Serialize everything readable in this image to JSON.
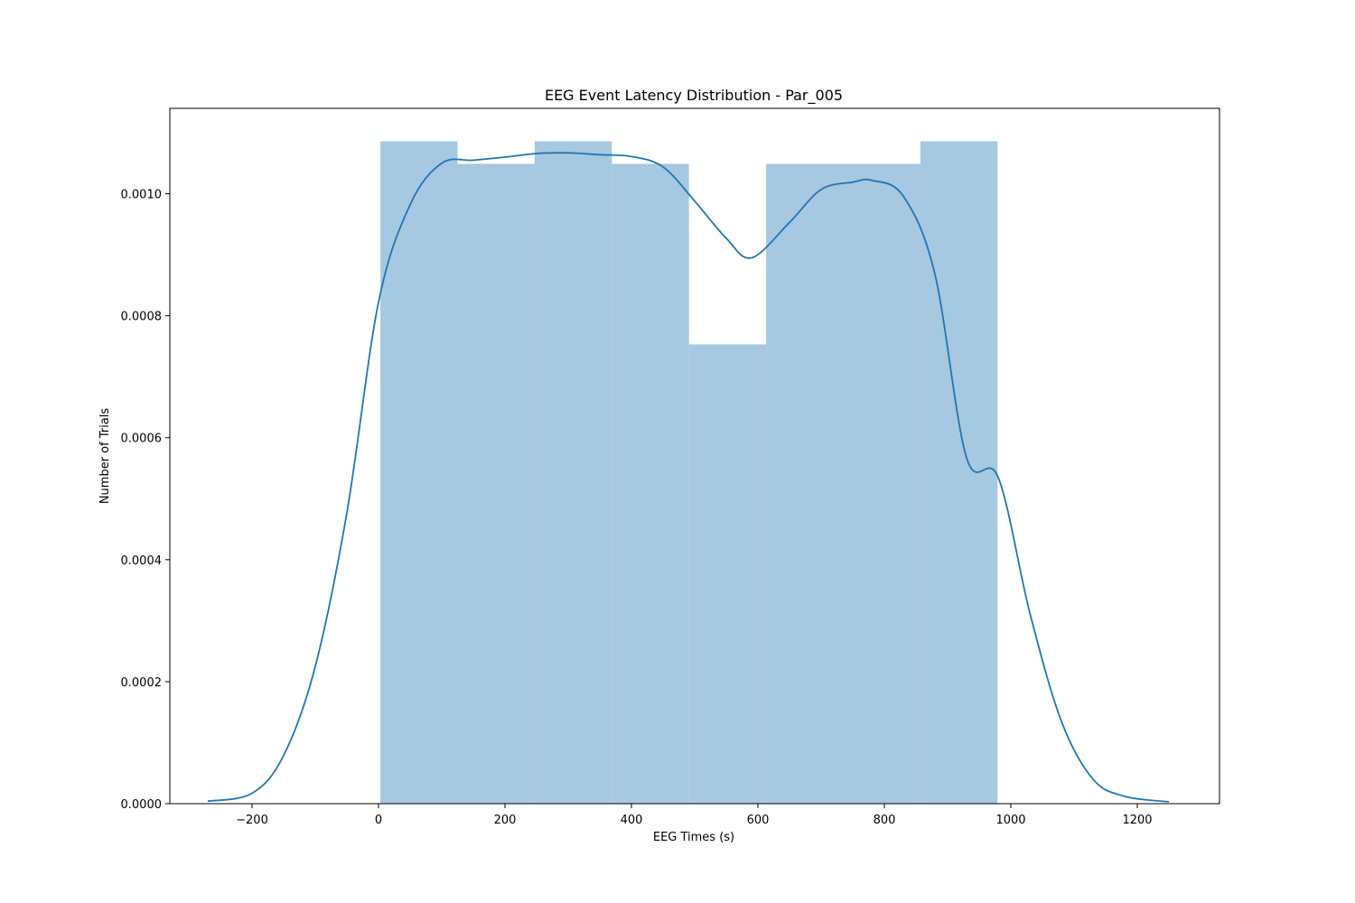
{
  "chart_data": {
    "type": "bar",
    "subtype": "histogram with kde line",
    "title": "EEG Event Latency Distribution - Par_005",
    "xlabel": "EEG Times (s)",
    "ylabel": "Number of Trials",
    "xlim": [
      -330,
      1330
    ],
    "ylim": [
      0,
      0.00114
    ],
    "xticks": [
      -200,
      0,
      200,
      400,
      600,
      800,
      1000,
      1200
    ],
    "xtick_labels": [
      "−200",
      "0",
      "200",
      "400",
      "600",
      "800",
      "1000",
      "1200"
    ],
    "yticks": [
      0,
      0.0002,
      0.0004,
      0.0006,
      0.0008,
      0.001
    ],
    "ytick_labels": [
      "0.0000",
      "0.0002",
      "0.0004",
      "0.0006",
      "0.0008",
      "0.0010"
    ],
    "grid": false,
    "legend": null,
    "colors": {
      "bars": "#a6c8e0",
      "line": "#1f77b4"
    },
    "bins": [
      {
        "x0": 3,
        "x1": 125,
        "value": 0.001086
      },
      {
        "x0": 125,
        "x1": 247,
        "value": 0.001049
      },
      {
        "x0": 247,
        "x1": 369,
        "value": 0.001086
      },
      {
        "x0": 369,
        "x1": 491,
        "value": 0.001049
      },
      {
        "x0": 491,
        "x1": 613,
        "value": 0.000753
      },
      {
        "x0": 613,
        "x1": 735,
        "value": 0.001049
      },
      {
        "x0": 735,
        "x1": 857,
        "value": 0.001049
      },
      {
        "x0": 857,
        "x1": 979,
        "value": 0.001086
      }
    ],
    "kde": {
      "x": [
        -270,
        -200,
        -150,
        -100,
        -50,
        0,
        50,
        100,
        150,
        200,
        250,
        300,
        350,
        400,
        450,
        500,
        550,
        590,
        650,
        700,
        750,
        780,
        830,
        880,
        930,
        980,
        1030,
        1080,
        1130,
        1180,
        1250
      ],
      "y": [
        4e-06,
        1.7e-05,
        7.9e-05,
        0.000225,
        0.000477,
        0.000822,
        0.000982,
        0.00105,
        0.001055,
        0.00106,
        0.001066,
        0.001067,
        0.001064,
        0.001061,
        0.001044,
        0.000988,
        0.000927,
        0.000895,
        0.000953,
        0.001007,
        0.001019,
        0.001022,
        0.000996,
        0.000868,
        0.000567,
        0.000535,
        0.000313,
        0.000135,
        4e-05,
        1.2e-05,
        3e-06
      ]
    }
  }
}
